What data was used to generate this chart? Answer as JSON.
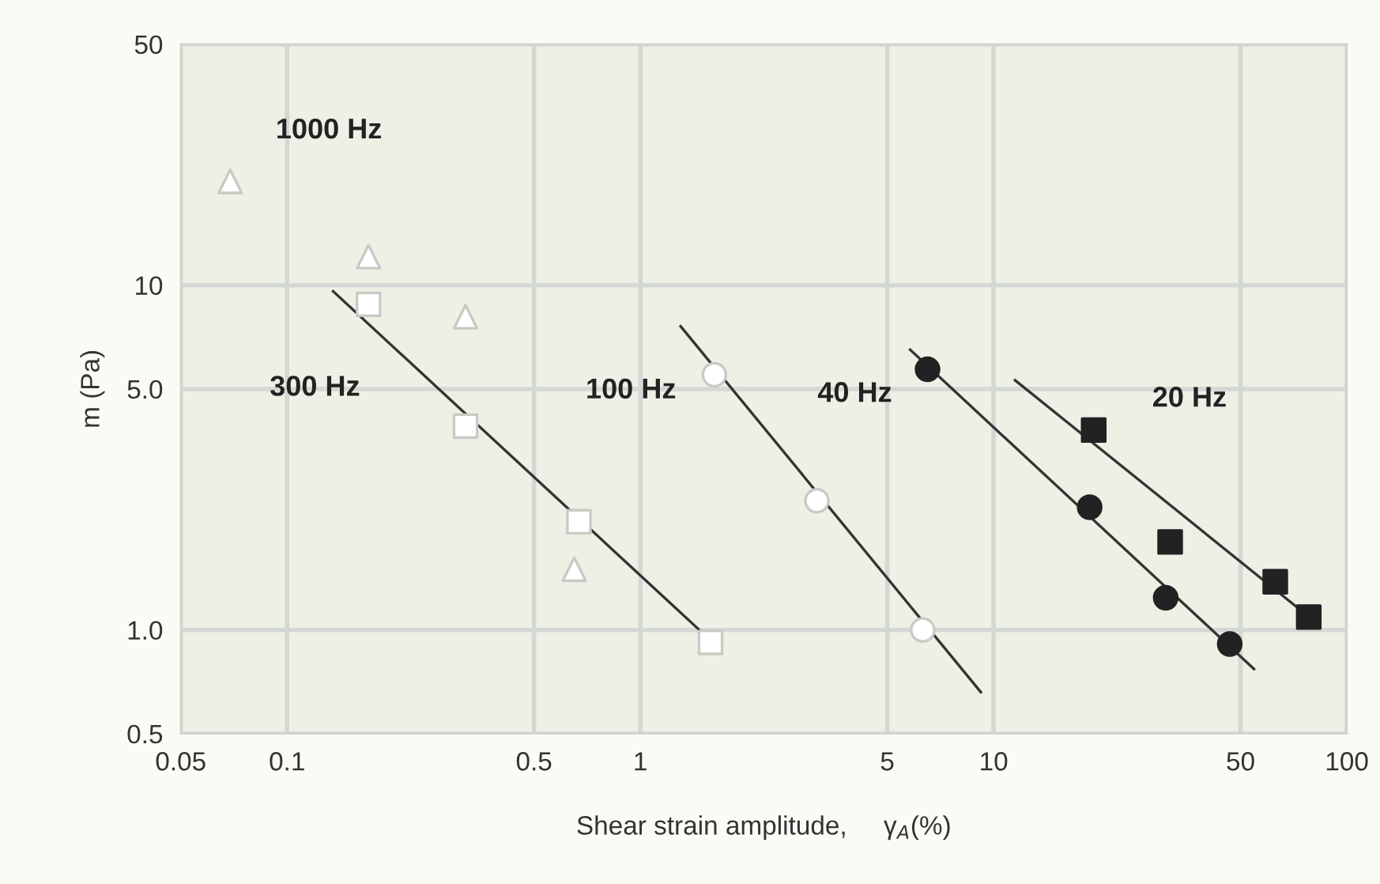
{
  "chart_data": {
    "type": "scatter",
    "xlabel": "Shear strain amplitude,     γ$_{A}$(%)",
    "ylabel": "m (Pa)",
    "log": "xy",
    "grid": true,
    "legend": false,
    "xlim": [
      0.05,
      100
    ],
    "ylim": [
      0.5,
      50
    ],
    "xticks": [
      0.05,
      0.1,
      0.5,
      1,
      5,
      10,
      50,
      100
    ],
    "yticks": [
      {
        "value": 0.5,
        "label": "0.5"
      },
      {
        "value": 1,
        "label": "1.0"
      },
      {
        "value": 5,
        "label": "5.0"
      },
      10,
      50
    ],
    "series": [
      {
        "marker": "triangle",
        "color": "#ffffff",
        "x": [
          0.069,
          0.17,
          0.32,
          0.65
        ],
        "values": [
          20,
          12.1,
          8.1,
          1.5
        ]
      },
      {
        "marker": "square",
        "color": "#ffffff",
        "x": [
          0.17,
          0.32,
          0.67,
          1.58
        ],
        "values": [
          8.8,
          3.9,
          2.06,
          0.92
        ]
      },
      {
        "type": "line",
        "color": "#333333",
        "x": [
          0.135,
          1.5
        ],
        "values": [
          9.6,
          0.98
        ]
      },
      {
        "marker": "circle",
        "color": "#ffffff",
        "x": [
          1.62,
          3.16,
          6.3
        ],
        "values": [
          5.5,
          2.37,
          1.0
        ]
      },
      {
        "type": "line",
        "color": "#333333",
        "x": [
          1.3,
          9.2
        ],
        "values": [
          7.6,
          0.66
        ]
      },
      {
        "marker": "circle",
        "color": "#222222",
        "x": [
          6.5,
          18.7,
          30.7,
          46.6
        ],
        "values": [
          5.7,
          2.27,
          1.24,
          0.91
        ]
      },
      {
        "type": "line",
        "color": "#333333",
        "x": [
          5.8,
          54.6
        ],
        "values": [
          6.5,
          0.77
        ]
      },
      {
        "marker": "square",
        "color": "#222222",
        "x": [
          19.2,
          31.6,
          62.7,
          78
        ],
        "values": [
          3.8,
          1.8,
          1.38,
          1.09
        ]
      },
      {
        "type": "line",
        "color": "#333333",
        "x": [
          11.5,
          82.8
        ],
        "values": [
          5.3,
          1.04
        ]
      }
    ],
    "annotations": [
      "1000 Hz",
      "300 Hz",
      "100 Hz",
      "40 Hz",
      "20 Hz"
    ]
  }
}
